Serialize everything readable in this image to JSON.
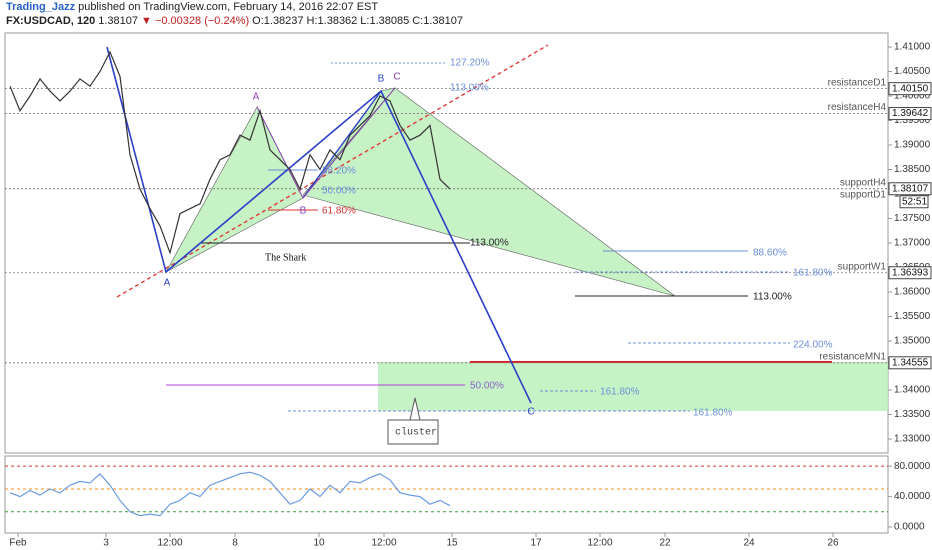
{
  "header": {
    "author": "Trading_Jazz",
    "published": "published on TradingView.com, February 14, 2016 22:07 EST",
    "symbol": "FX:USDCAD, 120",
    "last": "1.38107",
    "change": "▼ −0.00328 (−0.24%)",
    "open": "O:1.38237",
    "high": "H:1.38362",
    "low": "L:1.38085",
    "close": "C:1.38107"
  },
  "chart_data": [
    {
      "type": "line",
      "x": [
        0.5,
        1.5,
        2.5,
        3.5,
        4.5,
        5.5,
        6.5,
        7.5,
        8.5,
        9.5,
        10.5,
        11.5,
        12.5,
        13.5,
        14.5,
        15.5,
        16.5,
        17.5,
        18.5,
        19.5,
        20.5,
        21.5,
        22.5,
        23.5,
        24.5,
        25.5,
        26.5,
        27.5,
        28.5,
        29.5,
        30.5,
        31.5,
        32.5,
        33.5,
        34.5,
        35.5,
        36.5,
        37.5,
        38.5,
        39.5,
        40.5,
        41.5,
        42.5,
        43.5,
        44.5
      ],
      "values": [
        1.402,
        1.397,
        1.4,
        1.4035,
        1.401,
        1.399,
        1.401,
        1.4035,
        1.402,
        1.405,
        1.409,
        1.404,
        1.388,
        1.381,
        1.377,
        1.3735,
        1.368,
        1.376,
        1.377,
        1.378,
        1.383,
        1.387,
        1.388,
        1.392,
        1.391,
        1.397,
        1.389,
        1.387,
        1.385,
        1.381,
        1.388,
        1.385,
        1.389,
        1.387,
        1.392,
        1.394,
        1.396,
        1.4,
        1.399,
        1.394,
        1.391,
        1.392,
        1.394,
        1.383,
        1.381
      ],
      "color": "#333333",
      "xlim": [
        0,
        88.3
      ],
      "ylim": [
        1.32714,
        1.41286
      ],
      "xticks": [
        {
          "value": 1.3,
          "label": "Feb"
        },
        {
          "value": 10.1,
          "label": "3"
        },
        {
          "value": 16.5,
          "label": "12:00"
        },
        {
          "value": 23,
          "label": "8"
        },
        {
          "value": 31.4,
          "label": "10"
        },
        {
          "value": 37.9,
          "label": "12:00"
        },
        {
          "value": 44.7,
          "label": "15"
        },
        {
          "value": 53.1,
          "label": "17"
        },
        {
          "value": 59.5,
          "label": "12:00"
        },
        {
          "value": 66,
          "label": "22"
        },
        {
          "value": 74.4,
          "label": "24"
        },
        {
          "value": 82.8,
          "label": "26"
        }
      ],
      "yticks": [
        {
          "value": 1.41,
          "label": "1.41000"
        },
        {
          "value": 1.405,
          "label": "1.40500"
        },
        {
          "value": 1.4,
          "label": "1.40000"
        },
        {
          "value": 1.395,
          "label": "1.39500"
        },
        {
          "value": 1.39,
          "label": "1.39000"
        },
        {
          "value": 1.385,
          "label": "1.38500"
        },
        {
          "value": 1.38,
          "label": "1.38000"
        },
        {
          "value": 1.375,
          "label": "1.37500"
        },
        {
          "value": 1.37,
          "label": "1.37000"
        },
        {
          "value": 1.365,
          "label": "1.36500"
        },
        {
          "value": 1.36,
          "label": "1.36000"
        },
        {
          "value": 1.355,
          "label": "1.35500"
        },
        {
          "value": 1.35,
          "label": "1.35000"
        },
        {
          "value": 1.345,
          "label": "1.34500"
        },
        {
          "value": 1.34,
          "label": "1.34000"
        },
        {
          "value": 1.335,
          "label": "1.33500"
        },
        {
          "value": 1.33,
          "label": "1.33000"
        }
      ],
      "levels": [
        {
          "name": "resistanceD1",
          "value": 1.4015,
          "label": "1.40150"
        },
        {
          "name": "resistanceH4",
          "value": 1.39642,
          "label": "1.39642"
        },
        {
          "name": "supportH4",
          "value": 1.38107,
          "label": "1.38107"
        },
        {
          "name": "supportD1",
          "value": 1.38107
        },
        {
          "name": "supportW1",
          "value": 1.36393,
          "label": "1.36393"
        },
        {
          "name": "resistanceMN1",
          "value": 1.34555,
          "label": "1.34555"
        }
      ],
      "countdown": "52:51",
      "annotations": [
        {
          "text": "127.20%",
          "color": "#6a8fd8"
        },
        {
          "text": "113.00%",
          "color": "#6a8fd8"
        },
        {
          "text": "38.20%",
          "color": "#6a8fd8"
        },
        {
          "text": "50.00%",
          "color": "#6a8fd8"
        },
        {
          "text": "61.80%",
          "color": "#d33333"
        },
        {
          "text": "113.00%",
          "color": "#222222"
        },
        {
          "text": "88.60%",
          "color": "#6a8fd8"
        },
        {
          "text": "161.80%",
          "color": "#6a8fd8"
        },
        {
          "text": "113.00%",
          "color": "#222222"
        },
        {
          "text": "224.00%",
          "color": "#6a8fd8"
        },
        {
          "text": "50.00%",
          "color": "#8a60c8"
        },
        {
          "text": "161.80%",
          "color": "#6a8fd8"
        },
        {
          "text": "161.80%",
          "color": "#6a8fd8"
        },
        {
          "text": "The Shark",
          "color": "#111111"
        },
        {
          "text": "cluster",
          "color": "#444444"
        },
        {
          "text": "A",
          "color": "#2b3fc8"
        },
        {
          "text": "A",
          "color": "#8a3fb0"
        },
        {
          "text": "B",
          "color": "#8a3fb0"
        },
        {
          "text": "B",
          "color": "#2b3fc8"
        },
        {
          "text": "C",
          "color": "#8a3fb0"
        },
        {
          "text": "C",
          "color": "#2b3fc8"
        }
      ]
    },
    {
      "type": "line",
      "x": [
        0.5,
        1.5,
        2.5,
        3.5,
        4.5,
        5.5,
        6.5,
        7.5,
        8.5,
        9.5,
        10.5,
        11.5,
        12.5,
        13.5,
        14.5,
        15.5,
        16.5,
        17.5,
        18.5,
        19.5,
        20.5,
        21.5,
        22.5,
        23.5,
        24.5,
        25.5,
        26.5,
        27.5,
        28.5,
        29.5,
        30.5,
        31.5,
        32.5,
        33.5,
        34.5,
        35.5,
        36.5,
        37.5,
        38.5,
        39.5,
        40.5,
        41.5,
        42.5,
        43.5,
        44.5
      ],
      "values": [
        45,
        40,
        48,
        42,
        50,
        45,
        55,
        60,
        58,
        70,
        55,
        35,
        20,
        15,
        17,
        15,
        30,
        35,
        45,
        40,
        55,
        60,
        65,
        70,
        72,
        68,
        60,
        45,
        30,
        35,
        50,
        40,
        55,
        45,
        60,
        58,
        65,
        70,
        62,
        45,
        42,
        40,
        30,
        35,
        28
      ],
      "color": "#6a9be0",
      "xlim": [
        0,
        88.3
      ],
      "ylim": [
        -7.9,
        93.4
      ],
      "yticks": [
        {
          "value": 80,
          "label": "80.0000"
        },
        {
          "value": 40,
          "label": "40.0000"
        },
        {
          "value": 0,
          "label": "0.0000"
        }
      ],
      "levels": [
        {
          "value": 80,
          "color": "#d33333"
        },
        {
          "value": 50,
          "color": "#f09020"
        },
        {
          "value": 20,
          "color": "#3a9a3a"
        }
      ]
    }
  ]
}
